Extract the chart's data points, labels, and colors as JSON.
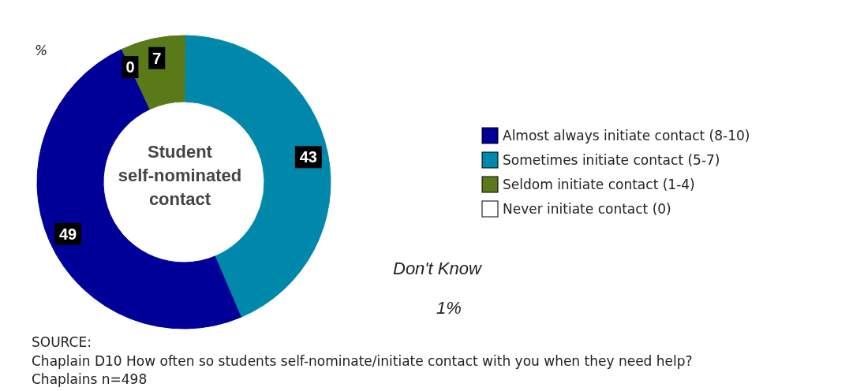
{
  "chart_data": {
    "type": "donut",
    "title": "Student self-nominated contact",
    "categories": [
      "Almost always initiate contact (8-10)",
      "Sometimes initiate contact (5-7)",
      "Seldom initiate contact (1-4)",
      "Never initiate contact (0)"
    ],
    "values": [
      49,
      43,
      7,
      0
    ],
    "colors": [
      "#000099",
      "#0088aa",
      "#5a7a1a",
      "#ffffff"
    ],
    "value_labels": [
      "49",
      "43",
      "7",
      "0"
    ],
    "legend": "right",
    "annotations": [
      "%",
      "Don't Know",
      "1%",
      "SOURCE:",
      "Chaplain D10 How often so students self-nominate/initiate contact with you when they need help?",
      "Chaplains n=498"
    ]
  }
}
